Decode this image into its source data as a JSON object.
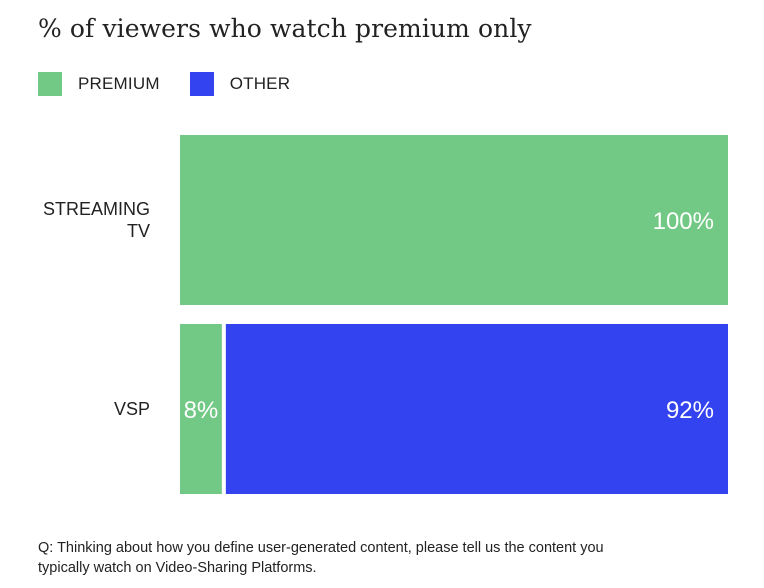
{
  "title": "% of viewers who watch premium only",
  "legend": [
    {
      "label": "PREMIUM",
      "color": "#72c885"
    },
    {
      "label": "OTHER",
      "color": "#3343f0"
    }
  ],
  "chart_data": {
    "type": "bar",
    "orientation": "horizontal",
    "stacked": true,
    "categories": [
      [
        "STREAMING",
        "TV"
      ],
      [
        "VSP"
      ]
    ],
    "series": [
      {
        "name": "PREMIUM",
        "color": "#72c885",
        "values": [
          100,
          8
        ],
        "labels": [
          "100%",
          "8%"
        ]
      },
      {
        "name": "OTHER",
        "color": "#3343f0",
        "values": [
          0,
          92
        ],
        "labels": [
          "",
          "92%"
        ]
      }
    ],
    "xlim": [
      0,
      100
    ],
    "legend_position": "top-left",
    "grid": false
  },
  "footnote": "Q: Thinking about how you define user-generated content, please tell us the content you typically watch on Video-Sharing Platforms."
}
